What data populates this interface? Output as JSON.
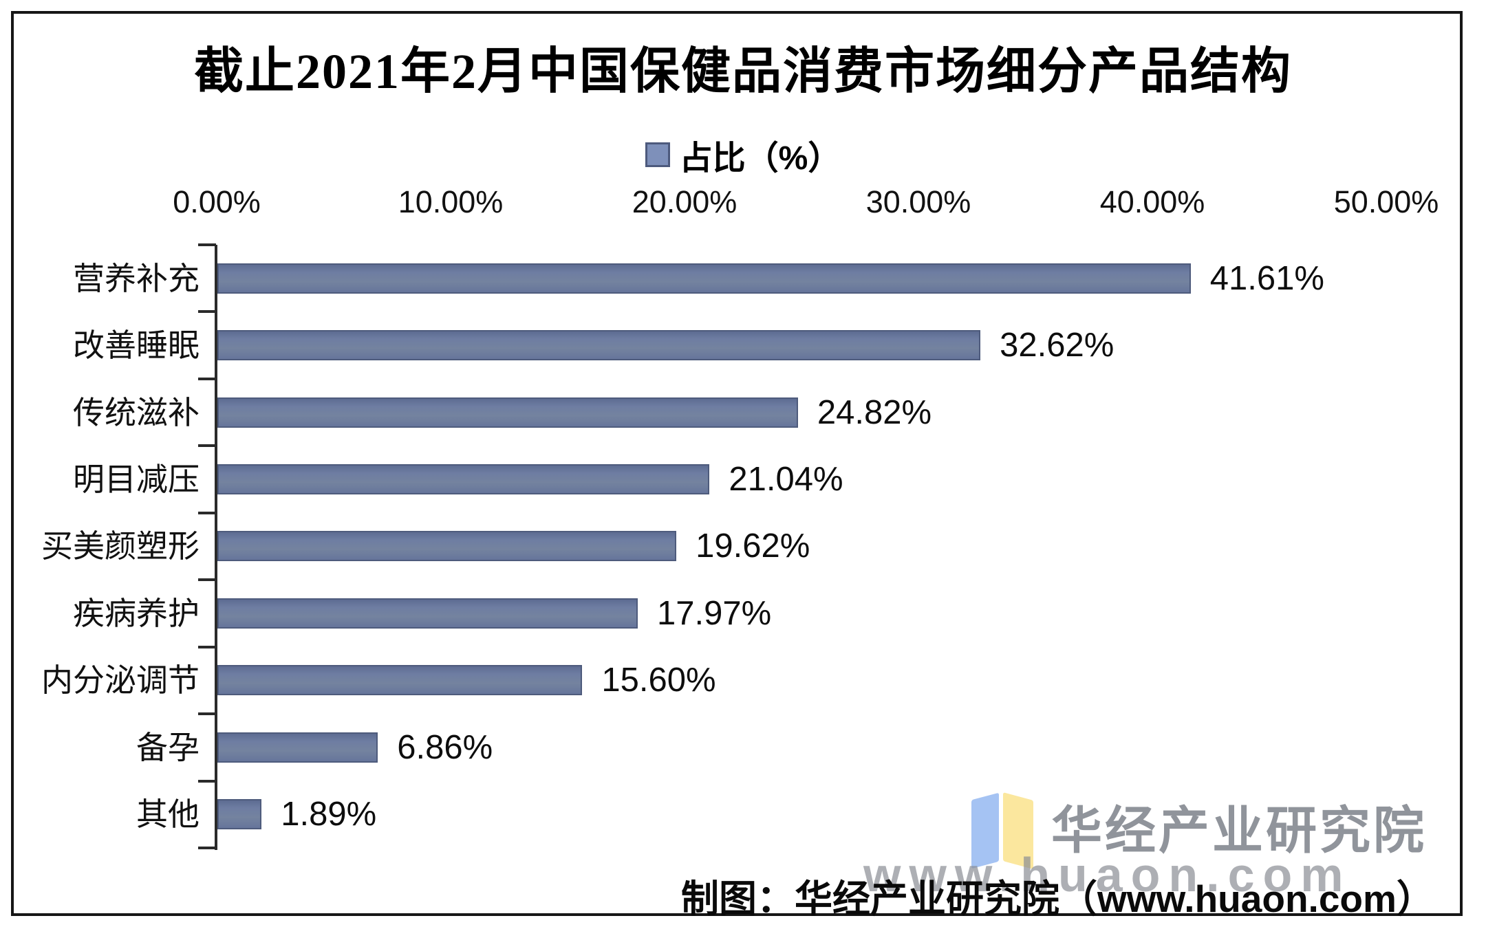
{
  "chart_data": {
    "type": "bar",
    "orientation": "horizontal",
    "title": "截止2021年2月中国保健品消费市场细分产品结构",
    "legend_label": "占比（%）",
    "categories": [
      "营养补充",
      "改善睡眠",
      "传统滋补",
      "明目减压",
      "买美颜塑形",
      "疾病养护",
      "内分泌调节",
      "备孕",
      "其他"
    ],
    "values": [
      41.61,
      32.62,
      24.82,
      21.04,
      19.62,
      17.97,
      15.6,
      6.86,
      1.89
    ],
    "value_labels": [
      "41.61%",
      "32.62%",
      "24.82%",
      "21.04%",
      "19.62%",
      "17.97%",
      "15.60%",
      "6.86%",
      "1.89%"
    ],
    "x_ticks": [
      "0.00%",
      "10.00%",
      "20.00%",
      "30.00%",
      "40.00%",
      "50.00%"
    ],
    "xlim": [
      0,
      50
    ],
    "grid": "off",
    "legend_position": "top-center",
    "bar_color": "#6e7da2",
    "bar_border_color": "#4e5b7c",
    "legend_swatch_color": "#7e90ba"
  },
  "footer": {
    "caption": "制图：华经产业研究院（www.huaon.com）"
  },
  "watermark": {
    "brand": "华经产业研究院",
    "url": "www.huaon.com"
  }
}
